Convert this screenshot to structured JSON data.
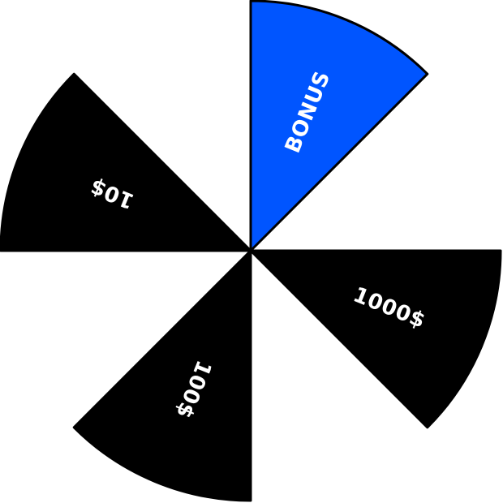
{
  "wheel": {
    "segments": [
      {
        "label": "BONUS",
        "fill": "#0055ff"
      },
      {
        "label": "1000$",
        "fill": "#000000"
      },
      {
        "label": "100$",
        "fill": "#000000"
      },
      {
        "label": "10$",
        "fill": "#000000"
      }
    ],
    "outline_color": "#000000",
    "label_color": "#ffffff",
    "background": "#ffffff"
  }
}
